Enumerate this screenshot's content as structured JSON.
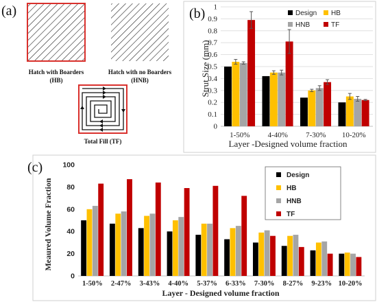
{
  "panel_a": {
    "label": "(a)",
    "hb_caption_1": "Hatch with Boarders",
    "hb_caption_2": "(HB)",
    "hnb_caption_1": "Hatch with no Boarders",
    "hnb_caption_2": "(HNB)",
    "tf_caption": "Total Fill (TF)",
    "border_color": "#d9302c"
  },
  "colors": {
    "Design": "#000000",
    "HB": "#ffc000",
    "HNB": "#a5a5a5",
    "TF": "#c00000"
  },
  "chart_data": [
    {
      "panel": "(b)",
      "type": "bar",
      "xlabel": "Layer -Designed  volume fraction",
      "ylabel": "Strut Size (mm)",
      "ylim": [
        0,
        1
      ],
      "yticks": [
        "0",
        "0.1",
        "0.2",
        "0.3",
        "0.4",
        "0.5",
        "0.6",
        "0.7",
        "0.8",
        "0.9",
        "1"
      ],
      "categories": [
        "1-50%",
        "4-40%",
        "7-30%",
        "10-20%"
      ],
      "grid": true,
      "legend": "top-left",
      "series": [
        {
          "name": "Design",
          "values": [
            0.5,
            0.42,
            0.24,
            0.2
          ],
          "errors": [
            0,
            0,
            0,
            0
          ]
        },
        {
          "name": "HB",
          "values": [
            0.54,
            0.45,
            0.3,
            0.25
          ],
          "errors": [
            0.02,
            0.015,
            0.01,
            0.025
          ]
        },
        {
          "name": "HNB",
          "values": [
            0.53,
            0.45,
            0.32,
            0.23
          ],
          "errors": [
            0.01,
            0.02,
            0.02,
            0.02
          ]
        },
        {
          "name": "TF",
          "values": [
            0.89,
            0.71,
            0.37,
            0.22
          ],
          "errors": [
            0.07,
            0.1,
            0.02,
            0.005
          ]
        }
      ]
    },
    {
      "panel": "(c)",
      "type": "bar",
      "xlabel": "Layer - Designed volume fraction",
      "ylabel": "Meaured Volume Fraction",
      "ylim": [
        0,
        100
      ],
      "yticks": [
        "0",
        "20",
        "40",
        "60",
        "80",
        "100"
      ],
      "categories": [
        "1-50%",
        "2-47%",
        "3-43%",
        "4-40%",
        "5-37%",
        "6-33%",
        "7-30%",
        "8-27%",
        "9-23%",
        "10-20%"
      ],
      "grid": false,
      "legend": "top-right",
      "series": [
        {
          "name": "Design",
          "values": [
            50,
            47,
            43,
            40,
            37,
            33,
            30,
            27,
            23,
            20
          ]
        },
        {
          "name": "HB",
          "values": [
            60,
            56,
            54,
            50,
            47,
            43,
            39,
            36,
            30,
            21
          ]
        },
        {
          "name": "HNB",
          "values": [
            63,
            58,
            56,
            53,
            47,
            45,
            41,
            37,
            31,
            20
          ]
        },
        {
          "name": "TF",
          "values": [
            83,
            87,
            84,
            79,
            81,
            72,
            36,
            26,
            20,
            17
          ]
        }
      ]
    }
  ]
}
